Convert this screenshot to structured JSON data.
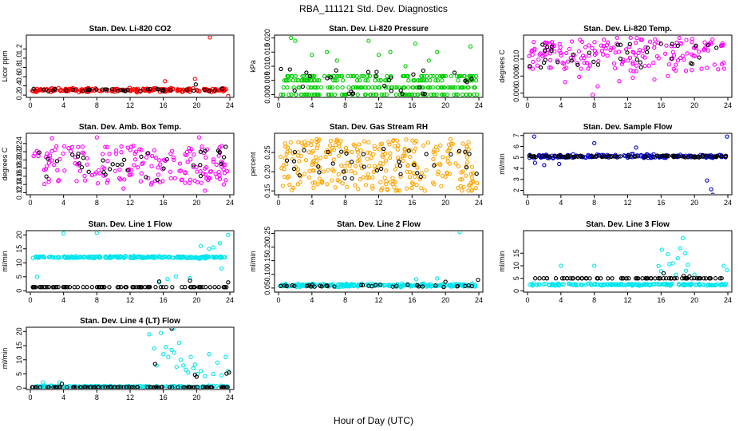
{
  "figure": {
    "title": "RBA_111121  Std. Dev. Diagnostics",
    "xlabel": "Hour of Day (UTC)"
  },
  "chart_data": [
    {
      "type": "scatter",
      "title": "Stan. Dev. Li-820 CO2",
      "ylabel": "Licor ppm",
      "xlim": [
        0,
        24
      ],
      "xticks": [
        0,
        4,
        8,
        12,
        16,
        20,
        24
      ],
      "ylim": [
        0.15,
        1.5
      ],
      "yticks": [
        0.2,
        0.4,
        0.6,
        0.8,
        1.0,
        1.2
      ],
      "yticklabels": [
        "0.2",
        "0.4",
        "0.6",
        "0.8",
        "1.0",
        "1.2"
      ],
      "series": [
        {
          "name": "all",
          "color": "#ff0000",
          "mode": "band",
          "center": 0.31,
          "spread": 0.06,
          "density": 4,
          "outliers": [
            [
              21.6,
              1.45
            ],
            [
              19.8,
              0.55
            ],
            [
              16.2,
              0.5
            ],
            [
              23.8,
              0.18
            ]
          ]
        },
        {
          "name": "black",
          "color": "#000000",
          "mode": "band",
          "center": 0.31,
          "spread": 0.05,
          "density": 0.6,
          "outliers": [
            [
              19.9,
              0.43
            ]
          ]
        }
      ]
    },
    {
      "type": "scatter",
      "title": "Stan. Dev. Li-820 Pressure",
      "ylabel": "kPa",
      "xlim": [
        0,
        24
      ],
      "xticks": [
        0,
        4,
        8,
        12,
        16,
        20,
        24
      ],
      "ylim": [
        -0.001,
        0.021
      ],
      "yticks": [
        0.0,
        0.005,
        0.01,
        0.015,
        0.02
      ],
      "yticklabels": [
        "0.000",
        "0.005",
        "0.010",
        "0.015",
        "0.020"
      ],
      "series": [
        {
          "name": "all",
          "color": "#00cc00",
          "mode": "levels",
          "levels": [
            0.0,
            0.0025,
            0.005,
            0.0065
          ],
          "density": 5,
          "outliers": [
            [
              1.5,
              0.02
            ],
            [
              2.0,
              0.019
            ],
            [
              4.0,
              0.014
            ],
            [
              5.8,
              0.015
            ],
            [
              7.0,
              0.012
            ],
            [
              10.8,
              0.019
            ],
            [
              12.0,
              0.014
            ],
            [
              13.4,
              0.015
            ],
            [
              15.2,
              0.01
            ],
            [
              16.4,
              0.018
            ],
            [
              18.0,
              0.012
            ],
            [
              19.0,
              0.015
            ],
            [
              23.0,
              0.017
            ]
          ]
        },
        {
          "name": "black",
          "color": "#000000",
          "mode": "scatter",
          "lo": 0.0,
          "hi": 0.009,
          "density": 0.5,
          "outliers": [
            [
              0.3,
              0.009
            ]
          ]
        }
      ]
    },
    {
      "type": "scatter",
      "title": "Stan. Dev. Li-820 Temp.",
      "ylabel": "degrees C",
      "xlim": [
        0,
        24
      ],
      "xticks": [
        0,
        4,
        8,
        12,
        16,
        20,
        24
      ],
      "ylim": [
        0.0055,
        0.0128
      ],
      "yticks": [
        0.006,
        0.008,
        0.01
      ],
      "yticklabels": [
        "0.006",
        "0.008",
        "0.010"
      ],
      "series": [
        {
          "name": "all",
          "color": "#ff00ff",
          "mode": "scatter",
          "lo": 0.0085,
          "hi": 0.0125,
          "density": 3,
          "outliers": [
            [
              7.8,
              0.0058
            ],
            [
              8.4,
              0.0068
            ],
            [
              4.5,
              0.0073
            ],
            [
              15.2,
              0.0076
            ],
            [
              11.0,
              0.0074
            ],
            [
              16.8,
              0.008
            ],
            [
              12.6,
              0.0078
            ],
            [
              6.2,
              0.0079
            ]
          ]
        },
        {
          "name": "black",
          "color": "#000000",
          "mode": "scatter",
          "lo": 0.009,
          "hi": 0.0118,
          "density": 0.6,
          "outliers": []
        }
      ]
    },
    {
      "type": "scatter",
      "title": "Stan. Dev. Amb. Box Temp.",
      "ylabel": "degrees C",
      "xlim": [
        0,
        24
      ],
      "xticks": [
        0,
        4,
        8,
        12,
        16,
        20,
        24
      ],
      "ylim": [
        0.115,
        0.265
      ],
      "yticks": [
        0.12,
        0.14,
        0.16,
        0.18,
        0.2,
        0.22,
        0.24
      ],
      "yticklabels": [
        "0.12",
        "0.14",
        "0.16",
        "0.18",
        "0.20",
        "0.22",
        "0.24"
      ],
      "series": [
        {
          "name": "all",
          "color": "#ff00ff",
          "mode": "scatter",
          "lo": 0.14,
          "hi": 0.235,
          "density": 3,
          "outliers": [
            [
              8.0,
              0.255
            ],
            [
              20.3,
              0.255
            ],
            [
              21.0,
              0.125
            ],
            [
              11.2,
              0.13
            ],
            [
              2.6,
              0.253
            ]
          ]
        },
        {
          "name": "black",
          "color": "#000000",
          "mode": "scatter",
          "lo": 0.15,
          "hi": 0.225,
          "density": 0.6,
          "outliers": [
            [
              23.5,
              0.232
            ]
          ]
        }
      ]
    },
    {
      "type": "scatter",
      "title": "Stan. Dev. Gas Stream RH",
      "ylabel": "percent",
      "xlim": [
        0,
        24
      ],
      "xticks": [
        0,
        4,
        8,
        12,
        16,
        20,
        24
      ],
      "ylim": [
        0.14,
        0.3
      ],
      "yticks": [
        0.15,
        0.2,
        0.25
      ],
      "yticklabels": [
        "0.15",
        "0.20",
        "0.25"
      ],
      "series": [
        {
          "name": "all",
          "color": "#ffa500",
          "mode": "scatter",
          "lo": 0.15,
          "hi": 0.285,
          "density": 5,
          "outliers": []
        },
        {
          "name": "black",
          "color": "#000000",
          "mode": "scatter",
          "lo": 0.18,
          "hi": 0.26,
          "density": 0.6,
          "outliers": []
        }
      ]
    },
    {
      "type": "scatter",
      "title": "Stan. Dev. Sample Flow",
      "ylabel": "ml/min",
      "xlim": [
        0,
        24
      ],
      "xticks": [
        0,
        4,
        8,
        12,
        16,
        20,
        24
      ],
      "ylim": [
        1.6,
        7.2
      ],
      "yticks": [
        2,
        3,
        4,
        5,
        6,
        7
      ],
      "yticklabels": [
        "2",
        "3",
        "4",
        "5",
        "6",
        "7"
      ],
      "series": [
        {
          "name": "all",
          "color": "#0000cc",
          "mode": "band",
          "center": 5.1,
          "spread": 0.25,
          "density": 3,
          "outliers": [
            [
              0.8,
              6.9
            ],
            [
              23.9,
              6.9
            ],
            [
              21.5,
              2.9
            ],
            [
              22.0,
              2.1
            ],
            [
              22.2,
              1.6
            ],
            [
              2.0,
              4.3
            ],
            [
              0.9,
              4.5
            ],
            [
              3.8,
              4.4
            ],
            [
              13.0,
              5.9
            ],
            [
              8.0,
              6.3
            ]
          ]
        },
        {
          "name": "black",
          "color": "#000000",
          "mode": "band",
          "center": 5.1,
          "spread": 0.15,
          "density": 1.5,
          "outliers": []
        }
      ]
    },
    {
      "type": "scatter",
      "title": "Stan. Dev. Line 1 Flow",
      "ylabel": "ml/min",
      "xlim": [
        0,
        24
      ],
      "xticks": [
        0,
        4,
        8,
        12,
        16,
        20,
        24
      ],
      "ylim": [
        -0.5,
        21.5
      ],
      "yticks": [
        0,
        5,
        10,
        15,
        20
      ],
      "yticklabels": [
        "0",
        "5",
        "10",
        "15",
        "20"
      ],
      "series": [
        {
          "name": "all",
          "color": "#00e5ee",
          "mode": "band",
          "center": 12.0,
          "spread": 0.6,
          "density": 4,
          "outliers": [
            [
              4.0,
              20.5
            ],
            [
              8.0,
              20.7
            ],
            [
              23.8,
              20.0
            ],
            [
              0.8,
              5.0
            ],
            [
              15.5,
              3.0
            ],
            [
              16.5,
              4.2
            ],
            [
              17.5,
              5.1
            ],
            [
              19.2,
              4.5
            ],
            [
              22.8,
              17.0
            ],
            [
              20.5,
              16.0
            ],
            [
              22.0,
              15.5
            ],
            [
              23.0,
              8.0
            ],
            [
              21.5,
              15.0
            ]
          ]
        },
        {
          "name": "black",
          "color": "#000000",
          "mode": "band",
          "center": 1.3,
          "spread": 0.05,
          "density": 1.5,
          "outliers": [
            [
              15.5,
              3.3
            ],
            [
              19.2,
              3.6
            ],
            [
              23.8,
              3.0
            ]
          ]
        }
      ]
    },
    {
      "type": "scatter",
      "title": "Stan. Dev. Line 2 Flow",
      "ylabel": "ml/min",
      "xlim": [
        0,
        24
      ],
      "xticks": [
        0,
        4,
        8,
        12,
        16,
        20,
        24
      ],
      "ylim": [
        0.035,
        0.26
      ],
      "yticks": [
        0.05,
        0.1,
        0.15,
        0.2,
        0.25
      ],
      "yticklabels": [
        "0.05",
        "0.10",
        "0.15",
        "0.20",
        "0.25"
      ],
      "series": [
        {
          "name": "all",
          "color": "#00e5ee",
          "mode": "band",
          "center": 0.06,
          "spread": 0.008,
          "density": 4,
          "outliers": [
            [
              21.7,
              0.255
            ],
            [
              19.0,
              0.085
            ],
            [
              16.5,
              0.082
            ]
          ]
        },
        {
          "name": "black",
          "color": "#000000",
          "mode": "band",
          "center": 0.058,
          "spread": 0.006,
          "density": 0.6,
          "outliers": [
            [
              23.9,
              0.08
            ],
            [
              20.0,
              0.073
            ]
          ]
        }
      ]
    },
    {
      "type": "scatter",
      "title": "Stan. Dev. Line 3 Flow",
      "ylabel": "ml/min",
      "xlim": [
        0,
        24
      ],
      "xticks": [
        0,
        4,
        8,
        12,
        16,
        20,
        24
      ],
      "ylim": [
        -0.5,
        24.0
      ],
      "yticks": [
        0,
        5,
        10,
        15
      ],
      "yticklabels": [
        "0",
        "5",
        "10",
        "15"
      ],
      "series": [
        {
          "name": "all",
          "color": "#00e5ee",
          "mode": "band",
          "center": 2.5,
          "spread": 0.6,
          "density": 3,
          "outliers": [
            [
              4.0,
              10.0
            ],
            [
              8.0,
              10.0
            ],
            [
              16.1,
              16.4
            ],
            [
              16.8,
              14.6
            ],
            [
              17.0,
              10.7
            ],
            [
              17.4,
              11.0
            ],
            [
              18.0,
              13.0
            ],
            [
              18.3,
              17.0
            ],
            [
              18.6,
              21.0
            ],
            [
              18.9,
              15.0
            ],
            [
              19.2,
              10.4
            ],
            [
              19.0,
              8.0
            ],
            [
              16.0,
              7.8
            ],
            [
              17.8,
              6.4
            ],
            [
              15.7,
              9.9
            ],
            [
              20.0,
              6.5
            ],
            [
              23.5,
              10.0
            ],
            [
              23.9,
              8.3
            ]
          ]
        },
        {
          "name": "black",
          "color": "#000000",
          "mode": "band",
          "center": 5.0,
          "spread": 0.05,
          "density": 1.3,
          "outliers": [
            [
              16.3,
              7.0
            ],
            [
              18.7,
              6.0
            ],
            [
              19.4,
              5.8
            ]
          ]
        }
      ]
    },
    {
      "type": "scatter",
      "title": "Stan. Dev. Line 4 (LT) Flow",
      "ylabel": "ml/min",
      "xlim": [
        0,
        24
      ],
      "xticks": [
        0,
        4,
        8,
        12,
        16,
        20,
        24
      ],
      "ylim": [
        -0.5,
        21.5
      ],
      "yticks": [
        0,
        5,
        10,
        15,
        20
      ],
      "yticklabels": [
        "0",
        "5",
        "10",
        "15",
        "20"
      ],
      "series": [
        {
          "name": "all",
          "color": "#00e5ee",
          "mode": "band",
          "center": 0.5,
          "spread": 0.5,
          "density": 3,
          "outliers": [
            [
              14.3,
              19.0
            ],
            [
              14.9,
              14.0
            ],
            [
              15.2,
              8.0
            ],
            [
              15.7,
              19.5
            ],
            [
              16.0,
              12.0
            ],
            [
              16.3,
              14.5
            ],
            [
              16.6,
              11.0
            ],
            [
              17.0,
              13.5
            ],
            [
              17.3,
              12.5
            ],
            [
              17.6,
              7.5
            ],
            [
              17.9,
              16.0
            ],
            [
              18.1,
              10.0
            ],
            [
              18.4,
              8.0
            ],
            [
              18.7,
              6.5
            ],
            [
              19.0,
              5.5
            ],
            [
              19.3,
              11.0
            ],
            [
              19.6,
              7.0
            ],
            [
              19.8,
              8.3
            ],
            [
              20.1,
              5.0
            ],
            [
              20.5,
              6.0
            ],
            [
              21.0,
              4.2
            ],
            [
              21.5,
              12.0
            ],
            [
              22.0,
              5.0
            ],
            [
              22.5,
              9.0
            ],
            [
              23.0,
              4.5
            ],
            [
              23.5,
              11.0
            ],
            [
              23.8,
              6.0
            ],
            [
              17.2,
              21.0
            ],
            [
              1.5,
              2.0
            ],
            [
              3.5,
              2.0
            ]
          ]
        },
        {
          "name": "black",
          "color": "#000000",
          "mode": "band",
          "center": 0.3,
          "spread": 0.1,
          "density": 1.5,
          "outliers": [
            [
              15.0,
              8.5
            ],
            [
              17.0,
              21.0
            ],
            [
              20.0,
              4.0
            ],
            [
              19.8,
              4.7
            ],
            [
              23.9,
              5.5
            ],
            [
              23.6,
              5.1
            ],
            [
              3.8,
              1.5
            ]
          ]
        }
      ]
    }
  ]
}
